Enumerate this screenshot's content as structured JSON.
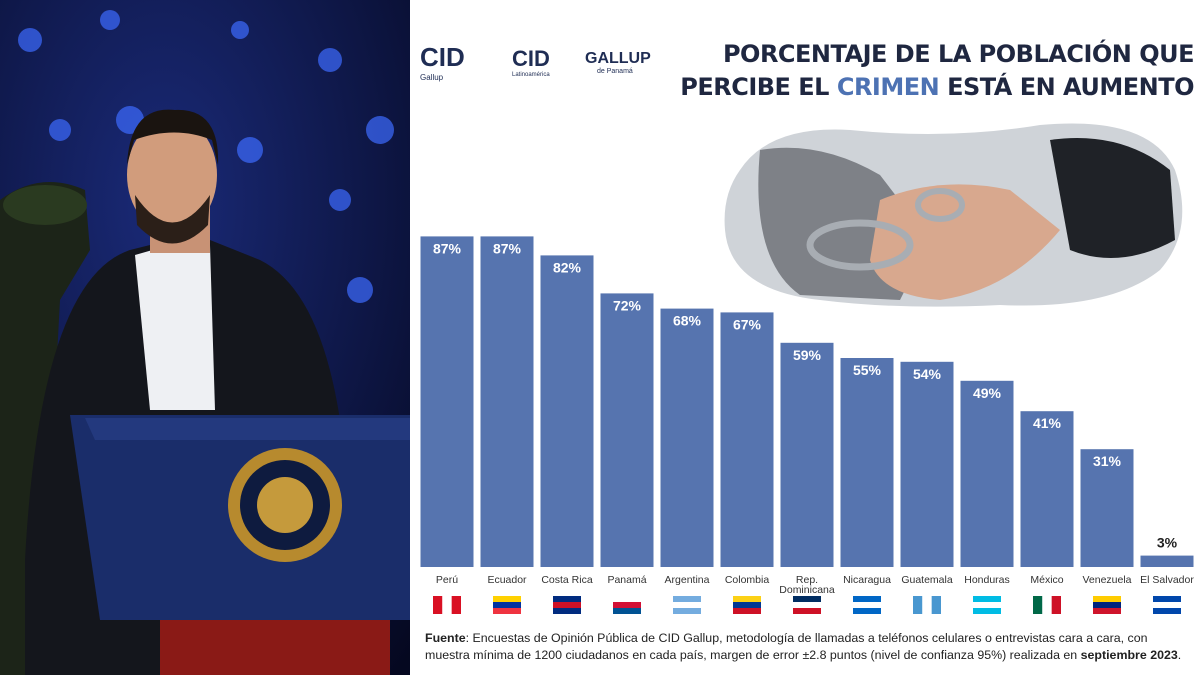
{
  "header": {
    "logos": [
      "CID",
      "Gallup",
      "CID",
      "Latinoamérica",
      "GALLUP",
      "de Panamá"
    ]
  },
  "chart_data": {
    "type": "bar",
    "title_parts": [
      "PORCENTAJE DE LA POBLACIÓN QUE",
      "PERCIBE EL ",
      "CRIMEN",
      " ESTÁ EN AUMENTO"
    ],
    "categories": [
      "Perú",
      "Ecuador",
      "Costa Rica",
      "Panamá",
      "Argentina",
      "Colombia",
      "Rep. Dominicana",
      "Nicaragua",
      "Guatemala",
      "Honduras",
      "México",
      "Venezuela",
      "El Salvador"
    ],
    "values": [
      87,
      87,
      82,
      72,
      68,
      67,
      59,
      55,
      54,
      49,
      41,
      31,
      3
    ],
    "value_labels": [
      "87%",
      "87%",
      "82%",
      "72%",
      "68%",
      "67%",
      "59%",
      "55%",
      "54%",
      "49%",
      "41%",
      "31%",
      "3%"
    ],
    "color": "#5674af"
  },
  "source": [
    "Fuente",
    ": Encuestas de Opinión Pública de CID Gallup, metodología de llamadas a teléfonos celulares o entrevistas cara a cara, con muestra mínima de 1200 ciudadanos en cada país, margen de error ±2.8 puntos (nivel de confianza 95%) realizada en ",
    "septiembre 2023",
    "."
  ]
}
